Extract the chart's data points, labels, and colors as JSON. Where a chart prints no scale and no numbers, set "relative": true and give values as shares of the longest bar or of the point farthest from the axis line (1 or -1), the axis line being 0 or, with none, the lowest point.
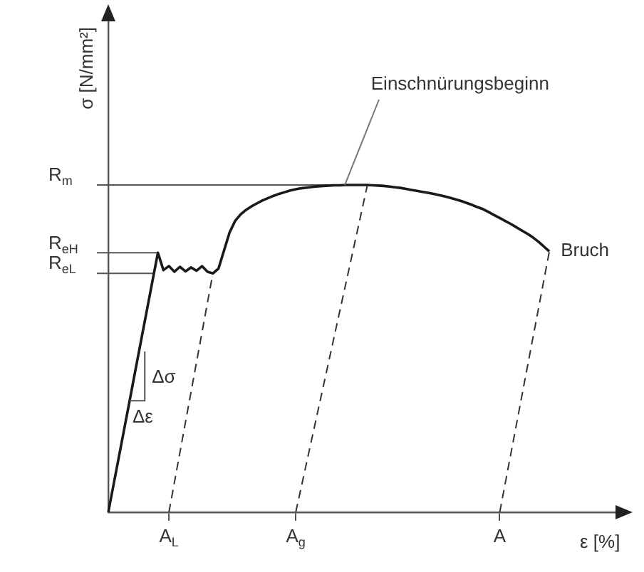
{
  "chart_data": {
    "type": "line",
    "xlabel": "ε [%]",
    "ylabel": "σ [N/mm²]",
    "relative": true,
    "marker": "none",
    "legend": false,
    "categories": [
      null,
      null,
      null,
      null,
      null,
      null,
      null,
      null,
      null,
      null,
      null,
      "A$_{L}$",
      null,
      null,
      null,
      null,
      null,
      null,
      null,
      null,
      null,
      null,
      null,
      null,
      null,
      null,
      null,
      null,
      null,
      null,
      null,
      null,
      null,
      null,
      "A$_{g}$",
      null,
      null,
      null,
      null,
      null,
      null,
      null,
      null,
      null,
      null,
      null,
      null,
      null,
      null,
      null,
      null,
      null,
      null,
      null,
      null,
      null,
      null,
      null,
      null,
      null,
      null,
      null,
      null,
      null,
      null,
      null,
      null,
      null,
      null,
      null,
      null,
      "A",
      null,
      null,
      null,
      null,
      null,
      null,
      null,
      null,
      null,
      null,
      null,
      null,
      null,
      null,
      null,
      null,
      null,
      null,
      null,
      null,
      null
    ],
    "series": [
      {
        "color": "#1a1a1a",
        "line_style": "solid",
        "values": [
          0,
          0.088,
          0.176,
          0.264,
          0.352,
          0.441,
          0.529,
          0.617,
          0.705,
          0.793,
          0.74,
          0.752,
          0.735,
          0.75,
          0.736,
          0.748,
          0.738,
          0.752,
          0.735,
          0.73,
          0.745,
          0.8,
          0.855,
          0.89,
          0.91,
          0.924,
          0.935,
          0.944,
          0.953,
          0.96,
          0.967,
          0.973,
          0.978,
          0.983,
          0.987,
          0.99,
          0.992,
          0.994,
          0.996,
          0.997,
          0.998,
          0.999,
          0.999,
          1,
          1,
          1,
          1,
          1,
          0.999,
          0.998,
          0.997,
          0.995,
          0.993,
          0.991,
          0.988,
          0.985,
          0.982,
          0.979,
          0.976,
          0.973,
          0.969,
          0.965,
          0.961,
          0.956,
          0.951,
          0.945,
          0.939,
          0.932,
          0.926,
          0.917,
          0.908,
          0.899,
          0.89,
          0.881,
          0.871,
          0.861,
          0.851,
          0.84,
          0.827,
          0.812,
          0.797,
          null,
          null,
          null,
          null,
          null,
          null,
          null,
          null,
          null,
          null,
          null,
          null
        ]
      },
      {
        "color": "#333333",
        "line_style": "dashed",
        "values": [
          null,
          null,
          null,
          null,
          null,
          null,
          null,
          null,
          null,
          null,
          null,
          0,
          null,
          null,
          null,
          null,
          null,
          null,
          null,
          0.733,
          null,
          null,
          null,
          null,
          null,
          null,
          null,
          null,
          null,
          null,
          null,
          null,
          null,
          null,
          null,
          null,
          null,
          null,
          null,
          null,
          null,
          null,
          null,
          null,
          null,
          null,
          null,
          null,
          null,
          null,
          null,
          null,
          null,
          null,
          null,
          null,
          null,
          null,
          null,
          null,
          null,
          null,
          null,
          null,
          null,
          null,
          null,
          null,
          null,
          null,
          null,
          null,
          null,
          null,
          null,
          null,
          null,
          null,
          null,
          null,
          null,
          null,
          null,
          null,
          null,
          null,
          null,
          null,
          null,
          null,
          null,
          null,
          null
        ]
      },
      {
        "color": "#333333",
        "line_style": "dashed",
        "values": [
          null,
          null,
          null,
          null,
          null,
          null,
          null,
          null,
          null,
          null,
          null,
          null,
          null,
          null,
          null,
          null,
          null,
          null,
          null,
          null,
          null,
          null,
          null,
          null,
          null,
          null,
          null,
          null,
          null,
          null,
          null,
          null,
          null,
          null,
          0,
          null,
          null,
          null,
          null,
          null,
          null,
          null,
          null,
          null,
          null,
          null,
          null,
          1,
          null,
          null,
          null,
          null,
          null,
          null,
          null,
          null,
          null,
          null,
          null,
          null,
          null,
          null,
          null,
          null,
          null,
          null,
          null,
          null,
          null,
          null,
          null,
          null,
          null,
          null,
          null,
          null,
          null,
          null,
          null,
          null,
          null,
          null,
          null,
          null,
          null,
          null,
          null,
          null,
          null,
          null,
          null,
          null,
          null
        ]
      },
      {
        "color": "#333333",
        "line_style": "dashed",
        "values": [
          null,
          null,
          null,
          null,
          null,
          null,
          null,
          null,
          null,
          null,
          null,
          null,
          null,
          null,
          null,
          null,
          null,
          null,
          null,
          null,
          null,
          null,
          null,
          null,
          null,
          null,
          null,
          null,
          null,
          null,
          null,
          null,
          null,
          null,
          null,
          null,
          null,
          null,
          null,
          null,
          null,
          null,
          null,
          null,
          null,
          null,
          null,
          null,
          null,
          null,
          null,
          null,
          null,
          null,
          null,
          null,
          null,
          null,
          null,
          null,
          null,
          null,
          null,
          null,
          null,
          null,
          null,
          null,
          null,
          null,
          null,
          0,
          null,
          null,
          null,
          null,
          null,
          null,
          null,
          null,
          0.797,
          null,
          null,
          null,
          null,
          null,
          null,
          null,
          null,
          null,
          null,
          null,
          null
        ]
      }
    ],
    "ref_lines": [
      {
        "axis": "y",
        "value": 1,
        "label": "R$_{m}$",
        "color": "#555555"
      },
      {
        "axis": "y",
        "value": 0.793,
        "label": "R$_{eH}$",
        "color": "#555555"
      },
      {
        "axis": "y",
        "value": 0.73,
        "label": "R$_{eL}$",
        "color": "#555555"
      }
    ],
    "annotations": [
      "Einschnürungsbeginn",
      "Bruch",
      "Δσ",
      "Δε"
    ]
  }
}
